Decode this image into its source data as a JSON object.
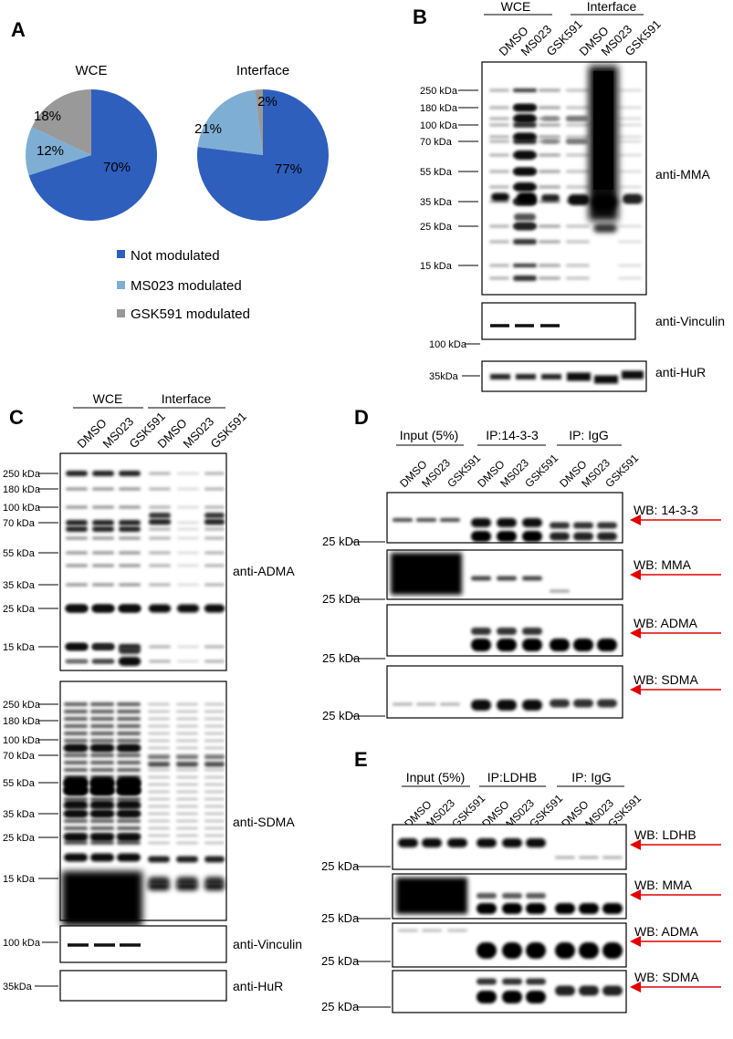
{
  "panels": {
    "A": "A",
    "B": "B",
    "C": "C",
    "D": "D",
    "E": "E"
  },
  "colors": {
    "not_modulated": "#2f5fbd",
    "ms023": "#7faed4",
    "gsk591": "#999999",
    "arrow": "#e00000"
  },
  "panel_a": {
    "legend": [
      "Not modulated",
      "MS023 modulated",
      "GSK591 modulated"
    ]
  },
  "chart_data": [
    {
      "type": "pie",
      "title": "WCE",
      "slices": [
        {
          "label": "Not modulated",
          "value": 70,
          "text": "70%"
        },
        {
          "label": "MS023 modulated",
          "value": 12,
          "text": "12%"
        },
        {
          "label": "GSK591 modulated",
          "value": 18,
          "text": "18%"
        }
      ]
    },
    {
      "type": "pie",
      "title": "Interface",
      "slices": [
        {
          "label": "Not modulated",
          "value": 77,
          "text": "77%"
        },
        {
          "label": "MS023 modulated",
          "value": 21,
          "text": "21%"
        },
        {
          "label": "GSK591 modulated",
          "value": 2,
          "text": "2%"
        }
      ]
    }
  ],
  "panel_b": {
    "groups": [
      "WCE",
      "Interface"
    ],
    "lanes": [
      "DMSO",
      "MS023",
      "GSK591",
      "DMSO",
      "MS023",
      "GSK591"
    ],
    "mma_markers": [
      "250 kDa",
      "180 kDa",
      "100 kDa",
      "70 kDa",
      "55 kDa",
      "35 kDa",
      "25 kDa",
      "15 kDa"
    ],
    "vinculin_marker": "100 kDa",
    "hur_marker": "35kDa",
    "labels": [
      "anti-MMA",
      "anti-Vinculin",
      "anti-HuR"
    ]
  },
  "panel_c": {
    "groups": [
      "WCE",
      "Interface"
    ],
    "lanes": [
      "DMSO",
      "MS023",
      "GSK591",
      "DMSO",
      "MS023",
      "GSK591"
    ],
    "adma_markers": [
      "250 kDa",
      "180 kDa",
      "100 kDa",
      "70 kDa",
      "55 kDa",
      "35 kDa",
      "25 kDa",
      "15 kDa"
    ],
    "sdma_markers": [
      "250 kDa",
      "180 kDa",
      "100 kDa",
      "70 kDa",
      "55 kDa",
      "35 kDa",
      "25 kDa",
      "15 kDa"
    ],
    "vinculin_marker": "100 kDa",
    "hur_marker": "35kDa",
    "labels": [
      "anti-ADMA",
      "anti-SDMA",
      "anti-Vinculin",
      "anti-HuR"
    ]
  },
  "panel_d": {
    "groups": [
      "Input (5%)",
      "IP:14-3-3",
      "IP: IgG"
    ],
    "lanes": [
      "DMSO",
      "MS023",
      "GSK591",
      "DMSO",
      "MS023",
      "GSK591",
      "DMSO",
      "MS023",
      "GSK591"
    ],
    "markers": [
      "25 kDa",
      "25 kDa",
      "25 kDa",
      "25 kDa"
    ],
    "wb": [
      "WB: 14-3-3",
      "WB: MMA",
      "WB: ADMA",
      "WB: SDMA"
    ]
  },
  "panel_e": {
    "groups": [
      "Input (5%)",
      "IP:LDHB",
      "IP: IgG"
    ],
    "lanes": [
      "DMSO",
      "MS023",
      "GSK591",
      "DMSO",
      "MS023",
      "GSK591",
      "DMSO",
      "MS023",
      "GSK591"
    ],
    "markers": [
      "25 kDa",
      "25 kDa",
      "25 kDa",
      "25 kDa"
    ],
    "wb": [
      "WB: LDHB",
      "WB: MMA",
      "WB: ADMA",
      "WB: SDMA"
    ]
  }
}
